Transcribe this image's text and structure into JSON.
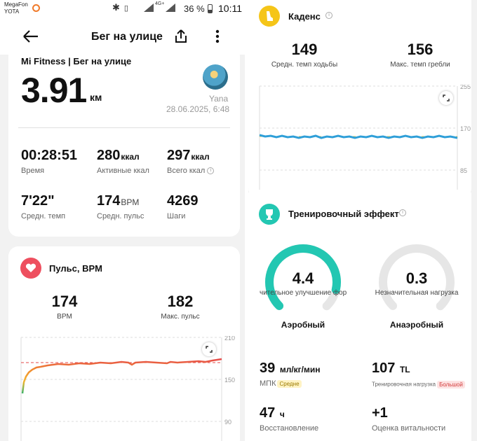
{
  "status_bar": {
    "carrier_1": "MegaFon",
    "carrier_2": "YOTA",
    "network": "4G+",
    "battery_percent": "36 %",
    "battery_level": 0.36,
    "time": "10:11"
  },
  "header": {
    "title": "Бег на улице"
  },
  "summary": {
    "app_title": "Mi Fitness | Бег на улице",
    "distance": "3.91",
    "distance_unit": "км",
    "user_name": "Yana",
    "date": "28.06.2025, 6:48",
    "stats": [
      {
        "value": "00:28:51",
        "unit": "",
        "label": "Время"
      },
      {
        "value": "280",
        "unit": "ккал",
        "label": "Активные ккал"
      },
      {
        "value": "297",
        "unit": "ккал",
        "label": "Всего ккал"
      },
      {
        "value": "7'22\"",
        "unit": "",
        "label": "Средн. темп"
      },
      {
        "value": "174",
        "unit": "BPM",
        "label": "Средн. пульс"
      },
      {
        "value": "4269",
        "unit": "",
        "label": "Шаги"
      }
    ]
  },
  "pulse": {
    "title": "Пульс, BPM",
    "avg_value": "174",
    "avg_label": "BPM",
    "max_value": "182",
    "max_label": "Макс. пульс",
    "axis": [
      "210",
      "150",
      "90"
    ]
  },
  "cadence": {
    "title": "Каденс",
    "avg_value": "149",
    "avg_label": "Средн. темп ходьбы",
    "max_value": "156",
    "max_label": "Макс. темп гребли",
    "axis": [
      "255",
      "170",
      "85"
    ]
  },
  "effect": {
    "title": "Тренировочный эффект",
    "aerobic_value": "4.4",
    "aerobic_note": "чительное улучшение фор",
    "aerobic_name": "Аэробный",
    "anaerobic_value": "0.3",
    "anaerobic_note": "Незначительная нагрузка",
    "anaerobic_name": "Анаэробный"
  },
  "bottom": {
    "vo2_value": "39",
    "vo2_unit": "мл/кг/мин",
    "vo2_label": "МПК",
    "vo2_tag": "Средне",
    "load_value": "107",
    "load_unit": "TL",
    "load_label": "Тренировочная нагрузка",
    "load_tag": "Большой",
    "recovery_value": "47",
    "recovery_unit": "ч",
    "recovery_label": "Восстановление",
    "vitality_value": "+1",
    "vitality_label": "Оценка витальности"
  },
  "colors": {
    "pulse_accent": "#ee4f5f",
    "cadence_accent": "#f5c518",
    "effect_accent": "#23c7b2",
    "cadence_line": "#2f9fd8",
    "gauge_track": "#e6e6e6"
  }
}
